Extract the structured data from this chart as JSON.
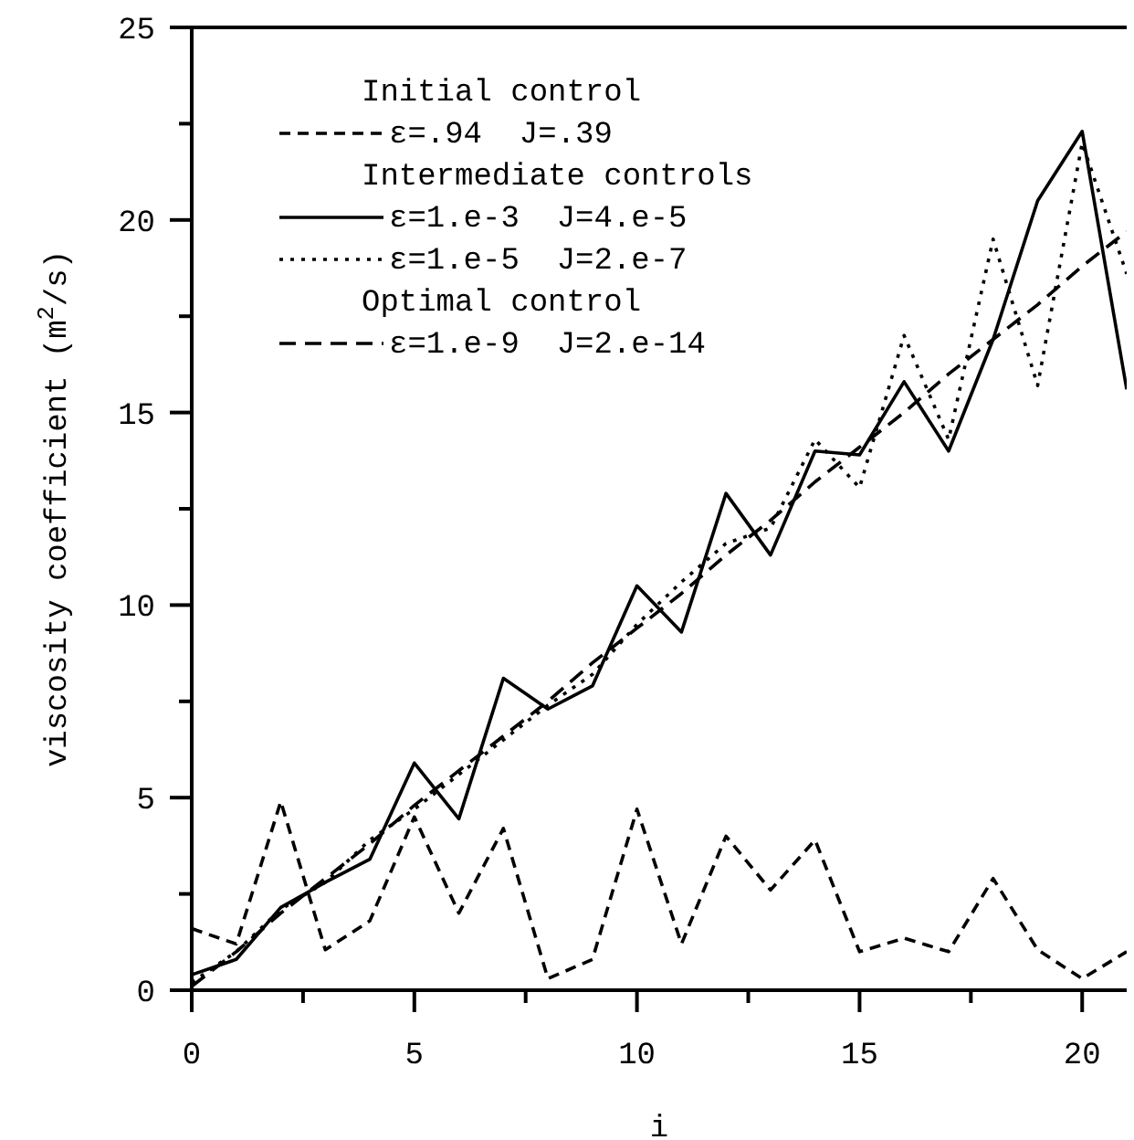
{
  "chart_data": {
    "type": "line",
    "xlabel": "i",
    "ylabel": "viscosity coefficient (m$^{2}$/s)",
    "x": [
      0,
      1,
      2,
      3,
      4,
      5,
      6,
      7,
      8,
      9,
      10,
      11,
      12,
      13,
      14,
      15,
      16,
      17,
      18,
      19,
      20,
      21
    ],
    "xlim": [
      0,
      21
    ],
    "ylim": [
      0,
      25
    ],
    "xticks": [
      0,
      {
        "value": 2.5,
        "label": null
      },
      5,
      {
        "value": 7.5,
        "label": null
      },
      10,
      {
        "value": 12.5,
        "label": null
      },
      15,
      {
        "value": 17.5,
        "label": null
      },
      20
    ],
    "yticks": [
      0,
      {
        "value": 2.5,
        "label": null
      },
      5,
      {
        "value": 7.5,
        "label": null
      },
      10,
      {
        "value": 12.5,
        "label": null
      },
      15,
      {
        "value": 17.5,
        "label": null
      },
      20,
      {
        "value": 22.5,
        "label": null
      },
      25
    ],
    "grid": false,
    "legend": "top left",
    "marker": "none",
    "annotations": [
      "Initial control",
      "Intermediate controls",
      "Optimal control"
    ],
    "series": [
      {
        "name": "ε=.94  J=.39",
        "color": "#000000",
        "line_style": "dashed",
        "values": [
          1.6,
          1.2,
          4.9,
          1.05,
          1.8,
          4.5,
          2.0,
          4.2,
          0.3,
          0.8,
          4.7,
          1.2,
          4.0,
          2.6,
          3.9,
          1.0,
          1.35,
          1.0,
          2.9,
          1.05,
          0.3,
          1.0
        ]
      },
      {
        "name": "ε=1.e-3  J=4.e-5",
        "color": "#000000",
        "line_style": "solid",
        "values": [
          0.4,
          0.8,
          2.15,
          2.8,
          3.4,
          5.9,
          4.45,
          8.1,
          7.3,
          7.9,
          10.5,
          9.3,
          12.9,
          11.3,
          14.0,
          13.9,
          15.8,
          14.0,
          16.9,
          20.5,
          22.3,
          15.6
        ]
      },
      {
        "name": "ε=1.e-5  J=2.e-7",
        "color": "#000000",
        "line_style": "dotted",
        "values": [
          0.2,
          1.0,
          2.1,
          2.8,
          3.9,
          4.7,
          5.6,
          6.5,
          7.4,
          8.2,
          9.5,
          10.6,
          11.6,
          12.0,
          14.3,
          13.05,
          17.0,
          14.3,
          19.5,
          15.7,
          22.0,
          18.6
        ]
      },
      {
        "name": "ε=1.e-9  J=2.e-14",
        "color": "#000000",
        "line_style": "longdash",
        "values": [
          0.1,
          1.0,
          2.0,
          2.9,
          3.8,
          4.8,
          5.7,
          6.6,
          7.5,
          8.5,
          9.4,
          10.3,
          11.3,
          12.2,
          13.2,
          14.1,
          15.0,
          16.0,
          16.9,
          17.8,
          18.8,
          19.7
        ]
      }
    ]
  }
}
